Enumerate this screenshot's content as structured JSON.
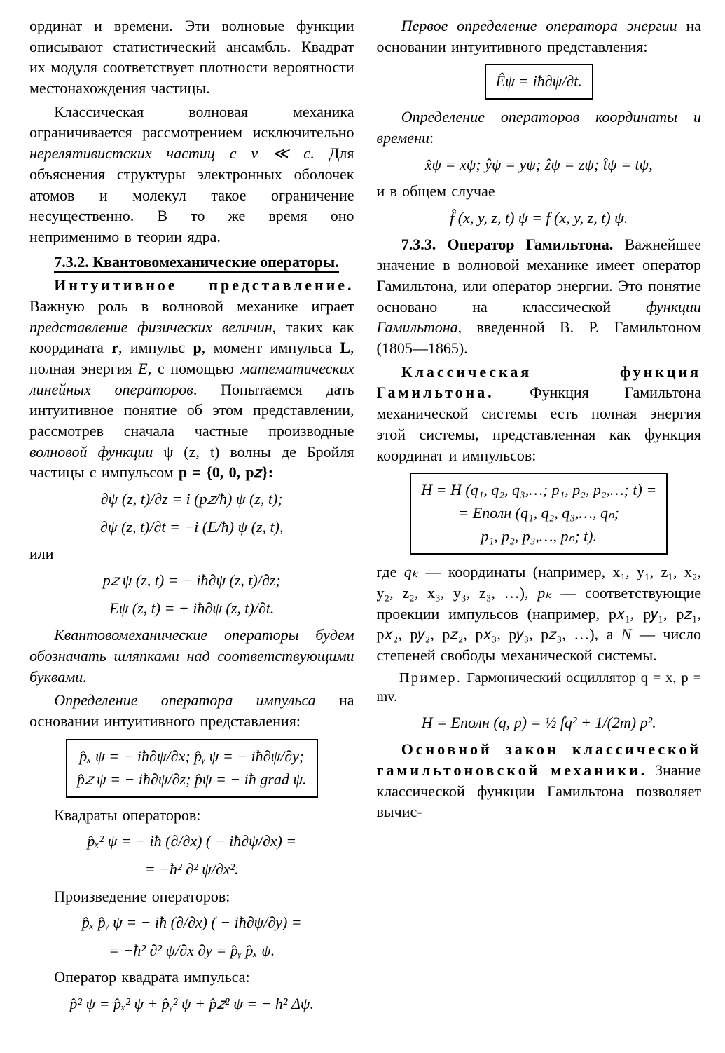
{
  "left": {
    "p1": "ординат и времени. Эти волновые функции описывают статистический ансамбль. Квадрат их модуля соответствует плотности вероятности местонахождения частицы.",
    "p2_a": "Классическая волновая механика ограничивается рассмотрением исключительно ",
    "p2_it1": "нерелятивистских частиц с v ≪ c",
    "p2_b": ". Для объяснения структуры электронных оболочек атомов и молекул такое ограничение несущественно. В то же время оно неприменимо в теории ядра.",
    "h1": "7.3.2. Квантовомеханические    операторы.",
    "p3_lead": "Интуитивное представление.",
    "p3_a": " Важную роль в волновой механике играет ",
    "p3_it1": "представление физических величин",
    "p3_b": ", таких как координата ",
    "p3_r": "r",
    "p3_c": ", импульс ",
    "p3_p": "p",
    "p3_d": ", момент импульса ",
    "p3_L": "L",
    "p3_e": ", полная энергия ",
    "p3_Eit": "E",
    "p3_f": ", с помощью ",
    "p3_it2": "математических линейных операторов",
    "p3_g": ". Попытаемся дать интуитивное понятие об этом представлении, рассмотрев сначала частные производные ",
    "p3_it3": "волновой функции",
    "p3_h": " ψ (z, t) волны де Бройля частицы с импульсом  ",
    "p3_pvec": "p = {0, 0, p𝑧}:",
    "f1a": "∂ψ (z, t)/∂z  =  i (p𝑧/ħ)  ψ (z, t);",
    "f1b": "∂ψ (z, t)/∂t  =  −i  (E/ħ)   ψ (z, t),",
    "p_or": "или",
    "f2a": "p𝑧 ψ (z, t)  =  − iħ∂ψ (z, t)/∂z;",
    "f2b": "Eψ (z, t)  =  + iħ∂ψ (z, t)/∂t.",
    "p4": "Квантовомеханические операторы будем обозначать шляпками над соответствующими буквами.",
    "p5_a": "Определение оператора импульса",
    "p5_b": " на основании интуитивного представления:",
    "box1_l1": "p̂ₓ ψ = − iħ∂ψ/∂x;   p̂ᵧ ψ = − iħ∂ψ/∂y;",
    "box1_l2": "p̂𝑧 ψ = − iħ∂ψ/∂z;   p̂ψ = − iħ grad ψ.",
    "p6": "Квадраты  операторов:",
    "f3a": "p̂ₓ² ψ = − iħ (∂/∂x) ( − iħ∂ψ/∂x) =",
    "f3b": "=  −ħ² ∂² ψ/∂x²."
  },
  "right": {
    "p1": "Произведение  операторов:",
    "f4a": "p̂ₓ p̂ᵧ ψ = − iħ (∂/∂x) ( − iħ∂ψ/∂y) =",
    "f4b": "=  −ħ² ∂² ψ/∂x ∂y  =  p̂ᵧ p̂ₓ ψ.",
    "p2": "Оператор квадрата импульса:",
    "f5": "p̂² ψ = p̂ₓ² ψ + p̂ᵧ² ψ + p̂𝑧² ψ  =  − ħ² Δψ.",
    "p3_a": "Первое определение оператора энергии",
    "p3_b": " на основании интуитивного представления:",
    "box2": "Êψ  =  iħ∂ψ/∂t.",
    "p4_a": "Определение операторов координаты и времени",
    "p4_b": ":",
    "f6": "x̂ψ = xψ;   ŷψ = yψ;   ẑψ = zψ;   t̂ψ = tψ,",
    "p5": "и в общем случае",
    "f7": "f̂ (x, y, z, t) ψ = f (x, y, z, t) ψ.",
    "h2_a": "7.3.3. Оператор Гамильтона.",
    "h2_b": " Важнейшее значение в волновой механике имеет оператор Гамильтона, или оператор энергии. Это понятие основано на классической ",
    "h2_it": "функции Гамильтона",
    "h2_c": ", введенной В. Р. Гамильтоном (1805—1865).",
    "p6_lead": "Классическая функция Гамильтона.",
    "p6_a": " Функция Гамильтона механической системы есть полная энергия этой системы, представленная как функция координат и импульсов:",
    "box3_l1": "H = H (q₁, q₂, q₃,…;  p₁, p₂, p₂,…;  t) =",
    "box3_l2": "=  Eполн (q₁, q₂, q₃,…, qₙ;",
    "box3_l3": "p₁, p₂, p₃,…, pₙ;  t).",
    "p7_a": "где  ",
    "p7_qk": "qₖ",
    "p7_b": " — координаты (например, x₁, y₁, z₁, x₂, y₂, z₂, x₃, y₃, z₃, …), ",
    "p7_pk": "pₖ",
    "p7_c": " — соответствующие проекции импульсов (например,  p𝑥₁, p𝑦₁, p𝑧₁, p𝑥₂, p𝑦₂, p𝑧₂, p𝑥₃, p𝑦₃, p𝑧₃, …),  а  ",
    "p7_N": "N",
    "p7_d": " — число степеней  свободы  механической системы.",
    "p8_a": "Пример.",
    "p8_b": "  Гармонический осциллятор  q = x,   p = mv.",
    "f8": "H = Eполн (q,  p) = ½ fq² + 1/(2m) p².",
    "p9_lead": "Основной закон классической гамильтоновской механики.",
    "p9_a": " Знание классической функции Гамильтона позволяет вычис-"
  }
}
